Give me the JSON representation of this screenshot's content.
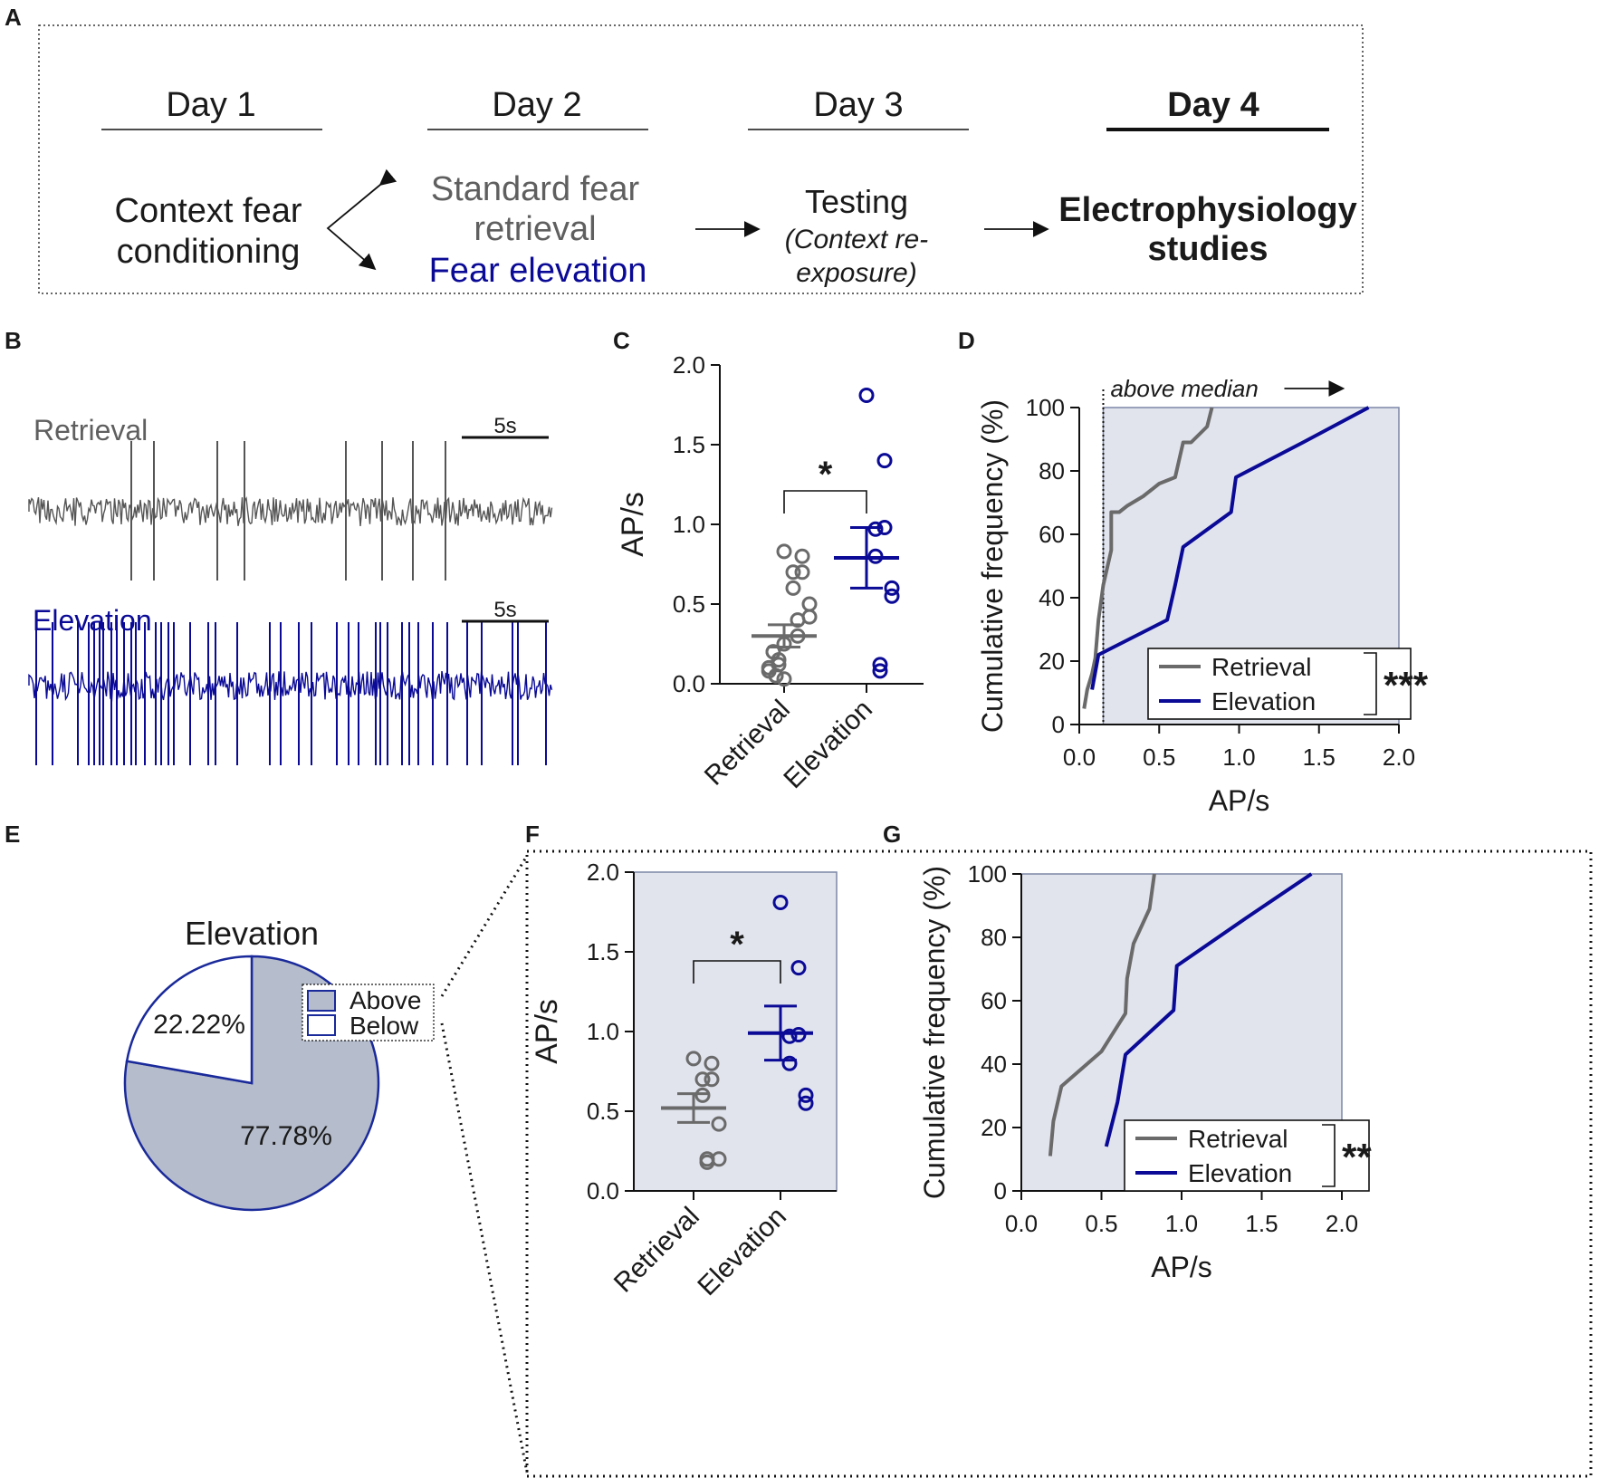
{
  "colors": {
    "retrieval": "#6a6a6a",
    "elevation": "#0a0a96",
    "panel_bg": "#e1e4ed",
    "panel_edge": "#7c87a6",
    "pie_above": "#b5bccb",
    "pie_edge": "#1a2a9a",
    "text": "#1a1a1a"
  },
  "panel_labels": [
    "A",
    "B",
    "C",
    "D",
    "E",
    "F",
    "G"
  ],
  "panelA": {
    "days": [
      {
        "label": "Day 1",
        "lines": [
          "Context fear",
          "conditioning"
        ]
      },
      {
        "label": "Day 2",
        "lines": [
          "Standard fear",
          "retrieval",
          "Fear elevation"
        ]
      },
      {
        "label": "Day 3",
        "lines": [
          "Testing",
          "(Context re-",
          "exposure)"
        ]
      },
      {
        "label": "Day 4",
        "lines": [
          "Electrophysiology",
          "studies"
        ]
      }
    ]
  },
  "panelB": {
    "traces": [
      {
        "name": "Retrieval",
        "scale_label": "5s",
        "spike_count": 9
      },
      {
        "name": "Elevation",
        "scale_label": "5s",
        "spike_count": 40
      }
    ]
  },
  "chart_data": [
    {
      "panel": "C",
      "type": "scatter",
      "ylabel": "AP/s",
      "ylim": [
        0,
        2
      ],
      "yticks": [
        0.0,
        0.5,
        1.0,
        1.5,
        2.0
      ],
      "categories": [
        "Retrieval",
        "Elevation"
      ],
      "series": [
        {
          "name": "Retrieval",
          "mean": 0.3,
          "sem": 0.07,
          "values": [
            0.83,
            0.8,
            0.7,
            0.7,
            0.6,
            0.5,
            0.42,
            0.4,
            0.3,
            0.25,
            0.2,
            0.2,
            0.15,
            0.12,
            0.1,
            0.08,
            0.05,
            0.05,
            0.03
          ]
        },
        {
          "name": "Elevation",
          "mean": 0.79,
          "sem": 0.19,
          "values": [
            1.81,
            1.4,
            0.98,
            0.97,
            0.8,
            0.6,
            0.55,
            0.12,
            0.08
          ]
        }
      ],
      "significance": "*"
    },
    {
      "panel": "D",
      "type": "line",
      "xlabel": "AP/s",
      "ylabel": "Cumulative frequency (%)",
      "xlim": [
        0,
        2
      ],
      "ylim": [
        0,
        100
      ],
      "xticks": [
        0.0,
        0.5,
        1.0,
        1.5,
        2.0
      ],
      "yticks": [
        0,
        20,
        40,
        60,
        80,
        100
      ],
      "annotation": "above median",
      "median_line": 0.15,
      "series": [
        {
          "name": "Retrieval",
          "x": [
            0.03,
            0.05,
            0.08,
            0.1,
            0.12,
            0.15,
            0.2,
            0.2,
            0.25,
            0.3,
            0.4,
            0.5,
            0.6,
            0.65,
            0.7,
            0.8,
            0.83
          ],
          "y": [
            5,
            11,
            16,
            21,
            33,
            44,
            55,
            67,
            67,
            69,
            72,
            76,
            78,
            89,
            89,
            94,
            100
          ]
        },
        {
          "name": "Elevation",
          "x": [
            0.08,
            0.12,
            0.55,
            0.6,
            0.65,
            0.95,
            0.98,
            1.4,
            1.81
          ],
          "y": [
            11,
            22,
            33,
            44,
            56,
            67,
            78,
            89,
            100
          ]
        }
      ],
      "significance": "***"
    },
    {
      "panel": "E",
      "type": "pie",
      "title": "Elevation",
      "labels": [
        "Above",
        "Below"
      ],
      "values": [
        77.78,
        22.22
      ],
      "value_labels": [
        "77.78%",
        "22.22%"
      ]
    },
    {
      "panel": "F",
      "type": "scatter",
      "ylabel": "AP/s",
      "ylim": [
        0,
        2
      ],
      "yticks": [
        0.0,
        0.5,
        1.0,
        1.5,
        2.0
      ],
      "categories": [
        "Retrieval",
        "Elevation"
      ],
      "series": [
        {
          "name": "Retrieval",
          "mean": 0.52,
          "sem": 0.09,
          "values": [
            0.83,
            0.8,
            0.7,
            0.7,
            0.6,
            0.42,
            0.2,
            0.2,
            0.18
          ]
        },
        {
          "name": "Elevation",
          "mean": 0.99,
          "sem": 0.17,
          "values": [
            1.81,
            1.4,
            0.98,
            0.97,
            0.8,
            0.6,
            0.55
          ]
        }
      ],
      "significance": "*"
    },
    {
      "panel": "G",
      "type": "line",
      "xlabel": "AP/s",
      "ylabel": "Cumulative frequency (%)",
      "xlim": [
        0,
        2
      ],
      "ylim": [
        0,
        100
      ],
      "xticks": [
        0.0,
        0.5,
        1.0,
        1.5,
        2.0
      ],
      "yticks": [
        0,
        20,
        40,
        60,
        80,
        100
      ],
      "series": [
        {
          "name": "Retrieval",
          "x": [
            0.18,
            0.2,
            0.25,
            0.5,
            0.65,
            0.66,
            0.7,
            0.8,
            0.83
          ],
          "y": [
            11,
            22,
            33,
            44,
            56,
            67,
            78,
            89,
            100
          ]
        },
        {
          "name": "Elevation",
          "x": [
            0.53,
            0.6,
            0.65,
            0.95,
            0.97,
            1.4,
            1.81
          ],
          "y": [
            14,
            28,
            43,
            57,
            71,
            86,
            100
          ]
        }
      ],
      "significance": "**"
    }
  ]
}
